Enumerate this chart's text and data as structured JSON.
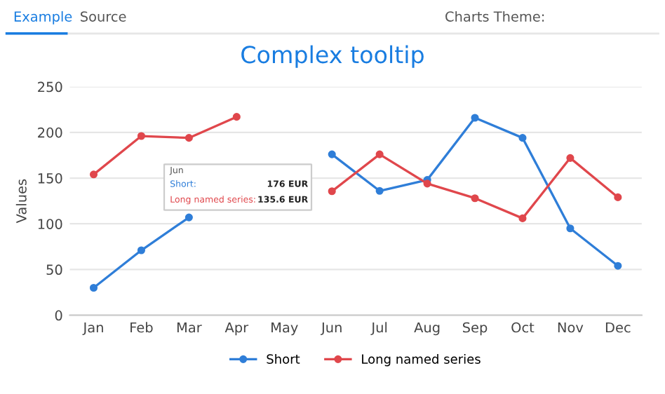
{
  "chart_data": {
    "type": "line",
    "title": "Complex tooltip",
    "ylabel": "Values",
    "categories": [
      "Jan",
      "Feb",
      "Mar",
      "Apr",
      "May",
      "Jun",
      "Jul",
      "Aug",
      "Sep",
      "Oct",
      "Nov",
      "Dec"
    ],
    "series": [
      {
        "name": "Short",
        "color": "#2f7ed8",
        "values": [
          30,
          71,
          107,
          null,
          null,
          176,
          136,
          148,
          216,
          194,
          95,
          54
        ]
      },
      {
        "name": "Long named series",
        "color": "#e0474c",
        "values": [
          154,
          196,
          194,
          217,
          null,
          135.6,
          176,
          144,
          128,
          106,
          172,
          129
        ]
      }
    ],
    "ylim": [
      0,
      250
    ],
    "yticks": [
      0,
      50,
      100,
      150,
      200,
      250
    ],
    "grid": "y",
    "legend": "bottom",
    "marker": "circle",
    "line_style": "solid",
    "annotations": [
      "Example",
      "Source",
      "Charts Theme:",
      "Jun",
      "Short:",
      "176 EUR",
      "Long named series:",
      "135.6 EUR"
    ]
  }
}
